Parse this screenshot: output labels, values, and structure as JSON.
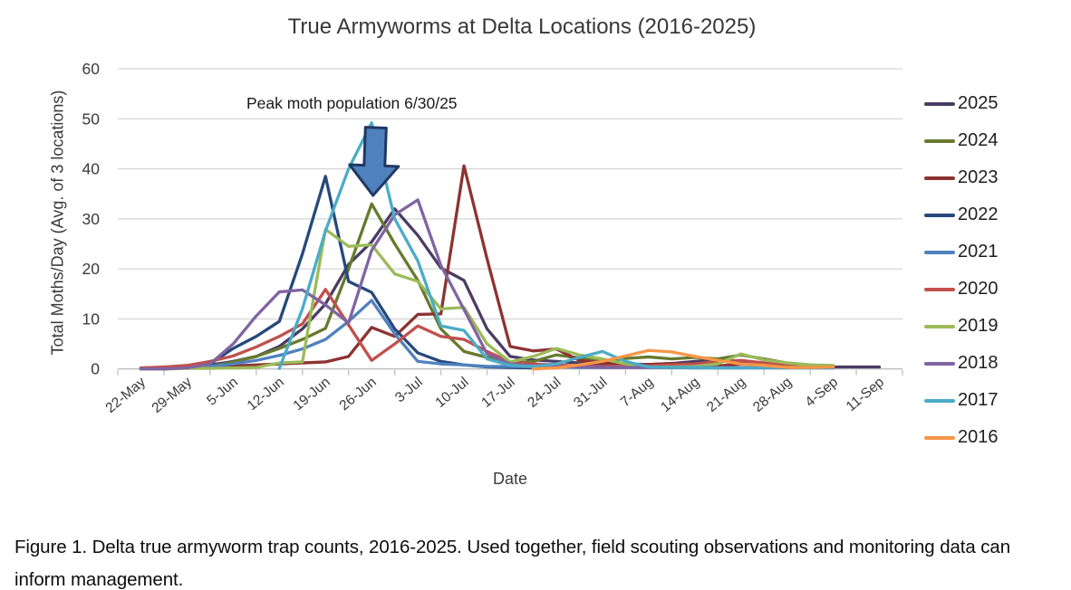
{
  "title": "True Armyworms at Delta Locations (2016-2025)",
  "annotation": {
    "text": "Peak moth population 6/30/25"
  },
  "axes": {
    "y_title": "Total Moths/Day (Avg. of 3 locations)",
    "x_title": "Date",
    "y_ticks": [
      0,
      10,
      20,
      30,
      40,
      50,
      60
    ],
    "x_tick_labels": [
      "22-May",
      "29-May",
      "5-Jun",
      "12-Jun",
      "19-Jun",
      "26-Jun",
      "3-Jul",
      "10-Jul",
      "17-Jul",
      "24-Jul",
      "31-Jul",
      "7-Aug",
      "14-Aug",
      "21-Aug",
      "28-Aug",
      "4-Sep",
      "11-Sep"
    ]
  },
  "chart_data": {
    "type": "line",
    "title": "True Armyworms at Delta Locations (2016-2025)",
    "xlabel": "Date",
    "ylabel": "Total Moths/Day (Avg. of 3 locations)",
    "ylim": [
      0,
      60
    ],
    "grid": true,
    "legend_position": "right",
    "x": [
      "22-May",
      "26-May",
      "29-May",
      "2-Jun",
      "5-Jun",
      "9-Jun",
      "12-Jun",
      "16-Jun",
      "19-Jun",
      "23-Jun",
      "26-Jun",
      "30-Jun",
      "3-Jul",
      "7-Jul",
      "10-Jul",
      "14-Jul",
      "17-Jul",
      "21-Jul",
      "24-Jul",
      "28-Jul",
      "31-Jul",
      "4-Aug",
      "7-Aug",
      "11-Aug",
      "14-Aug",
      "18-Aug",
      "21-Aug",
      "25-Aug",
      "28-Aug",
      "1-Sep",
      "4-Sep",
      "8-Sep",
      "11-Sep"
    ],
    "series": [
      {
        "name": "2025",
        "color": "#4a3c63",
        "values": [
          0.2,
          0.3,
          0.5,
          0.8,
          1.5,
          2.5,
          4.5,
          8,
          13,
          20.9,
          25.4,
          32,
          26.7,
          20.2,
          17.7,
          8,
          2.5,
          1.8,
          1.5,
          1.2,
          1,
          1,
          0.9,
          1.1,
          1.5,
          1.9,
          1.2,
          0.8,
          0.6,
          0.5,
          0.4,
          0.4,
          0.4
        ]
      },
      {
        "name": "2024",
        "color": "#667a2d",
        "values": [
          0,
          0,
          0.2,
          0.5,
          1.4,
          2.5,
          4.1,
          5.9,
          8.1,
          20,
          33,
          25,
          17.7,
          8,
          3.5,
          2.3,
          1.2,
          1.5,
          2.8,
          2.2,
          1.4,
          2.1,
          2.4,
          2,
          2.3,
          2,
          2.8,
          2,
          1.2,
          0.8,
          0.6,
          null,
          null
        ]
      },
      {
        "name": "2023",
        "color": "#8c3331",
        "values": [
          0.2,
          0.3,
          0.4,
          0.5,
          0.6,
          0.8,
          1,
          1.2,
          1.4,
          2.5,
          8.3,
          6.5,
          10.9,
          11,
          40.6,
          22,
          4.5,
          3.6,
          4,
          1.7,
          1.2,
          0.8,
          0.9,
          1.1,
          0.8,
          0.6,
          1,
          0.9,
          0.8,
          0.6,
          0.5,
          null,
          null
        ]
      },
      {
        "name": "2022",
        "color": "#27497b",
        "values": [
          0,
          0.1,
          0.2,
          1,
          4.1,
          6.5,
          9.5,
          23,
          38.5,
          17.5,
          15.3,
          8,
          3.2,
          1.5,
          0.8,
          0.4,
          0.3,
          0.2,
          0.2,
          null,
          null,
          null,
          null,
          null,
          null,
          null,
          null,
          null,
          null,
          null,
          null,
          null,
          null
        ]
      },
      {
        "name": "2021",
        "color": "#4f81bd",
        "values": [
          0,
          0.1,
          0.2,
          0.5,
          1,
          1.7,
          2.7,
          4,
          5.9,
          9.5,
          13.7,
          7,
          1.5,
          1,
          0.8,
          0.5,
          0.5,
          0.4,
          0.4,
          0.3,
          0.3,
          0.3,
          0.3,
          0.3,
          0.2,
          0.2,
          0.2,
          0.2,
          0.2,
          0.2,
          0.2,
          null,
          null
        ]
      },
      {
        "name": "2020",
        "color": "#c0504d",
        "values": [
          0.2,
          0.4,
          0.7,
          1.5,
          2.6,
          4.4,
          6.5,
          9,
          15.9,
          8.8,
          1.7,
          5,
          8.6,
          6.5,
          5.9,
          3.5,
          1.4,
          1,
          0.8,
          0.6,
          0.5,
          0.6,
          0.6,
          0.8,
          1,
          1.5,
          1.7,
          1.2,
          0.8,
          0.5,
          0.3,
          null,
          null
        ]
      },
      {
        "name": "2019",
        "color": "#9bbb59",
        "values": [
          0,
          0,
          0.1,
          0.1,
          0.2,
          0.3,
          1.2,
          1.4,
          27.9,
          24.5,
          24.8,
          19,
          17.5,
          12,
          12.3,
          5,
          1.4,
          2.5,
          4.1,
          2.8,
          2,
          1,
          0.4,
          0.4,
          0.5,
          1,
          3,
          1.8,
          1.2,
          0.8,
          0.7,
          null,
          null
        ]
      },
      {
        "name": "2018",
        "color": "#8064a2",
        "values": [
          0,
          0,
          0.2,
          1,
          5,
          10.6,
          15.4,
          15.8,
          12.8,
          9.2,
          23.7,
          30.8,
          33.8,
          20.7,
          11.9,
          3,
          1,
          0.6,
          0.5,
          0.4,
          0.3,
          0.3,
          0.3,
          0.3,
          0.3,
          0.3,
          0.3,
          0.3,
          0.3,
          0.3,
          0.3,
          null,
          null
        ]
      },
      {
        "name": "2017",
        "color": "#4bacc6",
        "values": [
          null,
          null,
          null,
          null,
          null,
          null,
          0.1,
          12,
          27.6,
          40,
          49.2,
          30,
          21.6,
          8.6,
          7.7,
          2,
          0.7,
          0.5,
          1,
          2.3,
          3.5,
          1.5,
          0.4,
          0.3,
          0.3,
          0.2,
          0.2,
          0.3,
          0.3,
          0.3,
          0.3,
          null,
          null
        ]
      },
      {
        "name": "2016",
        "color": "#f79646",
        "values": [
          null,
          null,
          null,
          null,
          null,
          null,
          null,
          null,
          null,
          null,
          null,
          null,
          null,
          null,
          null,
          null,
          null,
          0,
          0.2,
          0.8,
          1.5,
          2.6,
          3.7,
          3.4,
          2.5,
          1.7,
          1,
          0.7,
          0.3,
          0.3,
          0.4,
          null,
          null
        ]
      }
    ],
    "annotations": [
      {
        "text": "Peak moth population 6/30/25",
        "arrow": "block-down-arrow",
        "points_to_x": "30-Jun",
        "points_to_y": 35
      }
    ]
  },
  "styles": {
    "grid_color": "#d6d6d6",
    "axis_color": "#bfbfbf",
    "tick_label_color": "#3a3a3a",
    "arrow_fill": "#4f81bd",
    "arrow_stroke": "#1f3864"
  },
  "caption": "Figure 1. Delta true armyworm trap counts, 2016-2025. Used together, field scouting observations and monitoring data can inform management."
}
